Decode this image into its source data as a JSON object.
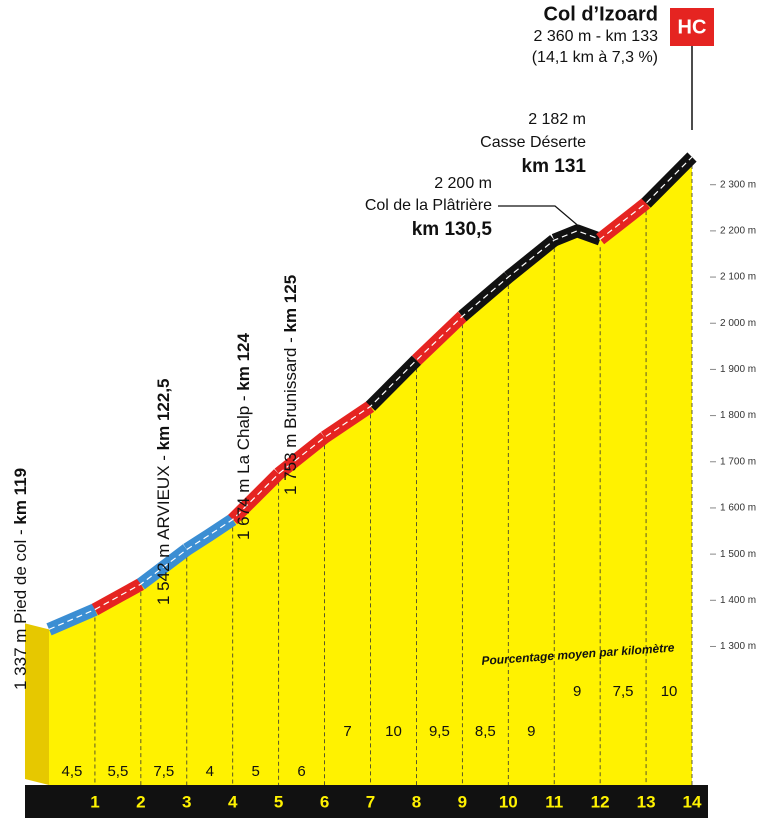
{
  "chart_data": {
    "type": "profile",
    "title": "Col d’Izoard",
    "subtitle": "2 360 m - km 133",
    "subtitle2": "(14,1 km à 7,3 %)",
    "badge": "HC",
    "x": [
      0,
      1,
      2,
      3,
      3.5,
      4,
      5,
      6,
      7,
      8,
      9,
      10,
      11,
      11.5,
      12,
      13,
      14
    ],
    "elevation": [
      1337,
      1380,
      1435,
      1510,
      1542,
      1575,
      1674,
      1753,
      1820,
      1920,
      2015,
      2100,
      2180,
      2200,
      2182,
      2260,
      2360
    ],
    "xlim": [
      0,
      14
    ],
    "ylim": [
      1000,
      2700
    ],
    "km_ticks": [
      1,
      2,
      3,
      4,
      5,
      6,
      7,
      8,
      9,
      10,
      11,
      12,
      13,
      14
    ],
    "yticks": [
      {
        "value": 1300,
        "label": "1 300 m"
      },
      {
        "value": 1400,
        "label": "1 400 m"
      },
      {
        "value": 1500,
        "label": "1 500 m"
      },
      {
        "value": 1600,
        "label": "1 600 m"
      },
      {
        "value": 1700,
        "label": "1 700 m"
      },
      {
        "value": 1800,
        "label": "1 800 m"
      },
      {
        "value": 1900,
        "label": "1 900 m"
      },
      {
        "value": 2000,
        "label": "2 000 m"
      },
      {
        "value": 2100,
        "label": "2 100 m"
      },
      {
        "value": 2200,
        "label": "2 200 m"
      },
      {
        "value": 2300,
        "label": "2 300 m"
      }
    ],
    "gradients": {
      "values": [
        4.5,
        5.5,
        7.5,
        4,
        5,
        6,
        7,
        10,
        9.5,
        8.5,
        9,
        9,
        7.5,
        10
      ],
      "value_labels": [
        "4,5",
        "5,5",
        "7,5",
        "4",
        "5",
        "6",
        "7",
        "10",
        "9,5",
        "8,5",
        "9",
        "9",
        "7,5",
        "10"
      ],
      "colors": [
        "#3b8ed3",
        "#e52421",
        "#3b8ed3",
        "#3b8ed3",
        "#e52421",
        "#e52421",
        "#e52421",
        "#111111",
        "#e52421",
        "#111111",
        "#111111",
        "#111111",
        "#e52421",
        "#111111"
      ]
    },
    "gradient_note": "Pourcentage moyen par kilomètre",
    "vertical_annotations": [
      {
        "text": "1 337 m Pied de col - ",
        "km": "km 119"
      },
      {
        "text": "1 542 m ARVIEUX - ",
        "km": "km 122,5"
      },
      {
        "text": "1 674 m La Chalp - ",
        "km": "km 124"
      },
      {
        "text": "1 753 m Brunissard - ",
        "km": "km 125"
      }
    ],
    "annotations": [
      {
        "elevation": "2 200 m",
        "name": "Col de la Plâtrière",
        "km": "km 130,5"
      },
      {
        "elevation": "2 182 m",
        "name": "Casse Déserte",
        "km": "km 131"
      }
    ]
  }
}
